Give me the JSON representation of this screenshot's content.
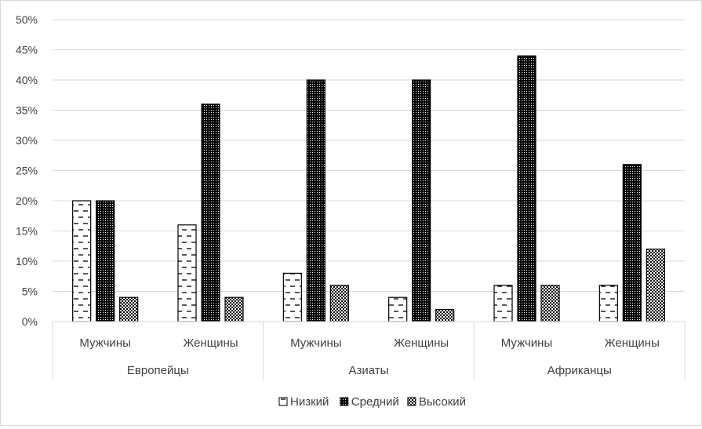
{
  "chart_data": {
    "type": "bar",
    "title": "",
    "xlabel": "",
    "ylabel": "",
    "ylim": [
      0,
      50
    ],
    "y_ticks": [
      "0%",
      "5%",
      "10%",
      "15%",
      "20%",
      "25%",
      "30%",
      "35%",
      "40%",
      "45%",
      "50%"
    ],
    "grid": true,
    "legend_position": "bottom",
    "groups": [
      "Европейцы",
      "Азиаты",
      "Африканцы"
    ],
    "categories": [
      "Мужчины",
      "Женщины",
      "Мужчины",
      "Женщины",
      "Мужчины",
      "Женщины"
    ],
    "series": [
      {
        "name": "Низкий",
        "values": [
          20,
          16,
          8,
          4,
          6,
          6
        ]
      },
      {
        "name": "Средний",
        "values": [
          20,
          36,
          40,
          40,
          44,
          26
        ]
      },
      {
        "name": "Высокий",
        "values": [
          4,
          4,
          6,
          2,
          6,
          12
        ]
      }
    ]
  }
}
